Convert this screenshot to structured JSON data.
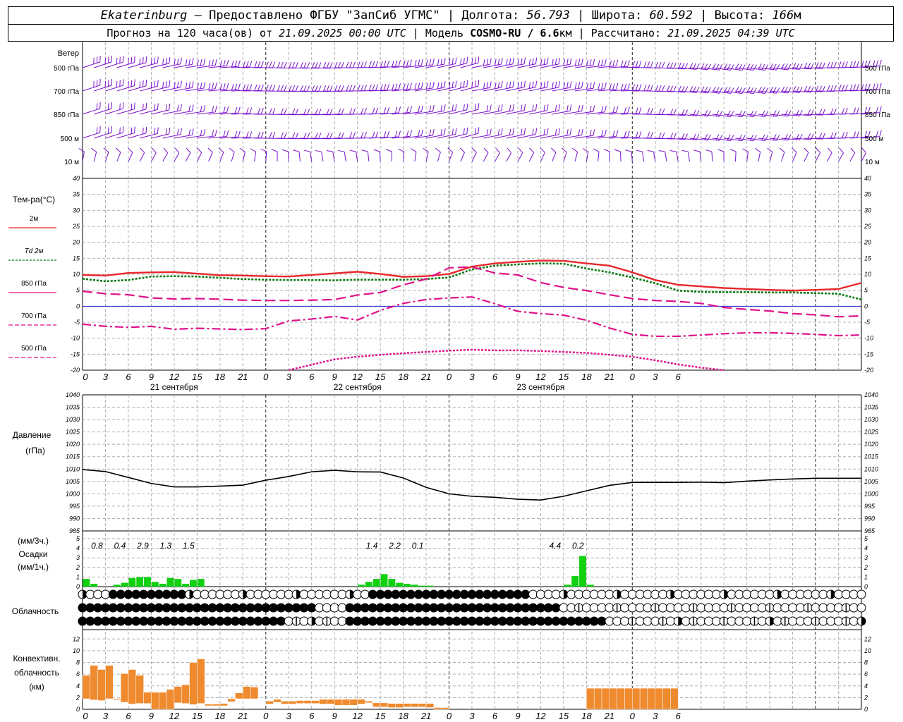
{
  "header": {
    "city": "Ekaterinburg",
    "provider": " – Предоставлено ФГБУ \"ЗапСиб УГМС\" | ",
    "lon_label": "Долгота: ",
    "lon_value": "56.793",
    "lat_label": " | Широта: ",
    "lat_value": "60.592",
    "alt_label": " | Высота: ",
    "alt_value": "166",
    "alt_unit": "м",
    "forecast_label": "Прогноз на 120 часа(ов) от ",
    "forecast_from": "21.09.2025 00:00 UTC",
    "model_label": " | Модель ",
    "model_name": "COSMO-RU / 6.6",
    "model_unit": "км",
    "calc_label": " | Рассчитано: ",
    "calc_time": "21.09.2025 04:39 UTC"
  },
  "wind_panel": {
    "title": "Ветер",
    "levels": [
      "500 гПа",
      "700 гПа",
      "850 гПа",
      "500 м",
      "10 м"
    ]
  },
  "temp_panel": {
    "title": "Тем-ра(°C)",
    "yticks": [
      "40",
      "35",
      "30",
      "25",
      "20",
      "15",
      "10",
      "5",
      "0",
      "-5",
      "-10",
      "-15",
      "-20"
    ],
    "legend": [
      "2м",
      "Td  2м",
      "850 гПа",
      "700 гПа",
      "500 гПа"
    ]
  },
  "time_axis": {
    "hour_labels": [
      "0",
      "3",
      "6",
      "9",
      "12",
      "15",
      "18",
      "21",
      "0",
      "3",
      "6",
      "9",
      "12",
      "15",
      "18",
      "21",
      "0",
      "3",
      "6",
      "9",
      "12",
      "15",
      "18",
      "21",
      "0",
      "3",
      "6"
    ],
    "day_labels": [
      "21 сентября",
      "22 сентября",
      "23 сентября"
    ]
  },
  "pressure_panel": {
    "title_line1": "Давление",
    "title_line2": "(гПа)",
    "yticks": [
      "1040",
      "1035",
      "1030",
      "1025",
      "1020",
      "1015",
      "1010",
      "1005",
      "1000",
      "995",
      "990",
      "985"
    ]
  },
  "precip_panel": {
    "title_line1": "(мм/3ч.)",
    "title_line2": "Осадки",
    "title_line3": "(мм/1ч.)",
    "yticks": [
      "5",
      "4",
      "3",
      "2",
      "1",
      "0"
    ],
    "totals_3h": [
      {
        "hour": 3,
        "label": "0.8"
      },
      {
        "hour": 6,
        "label": "0.4"
      },
      {
        "hour": 9,
        "label": "2.9"
      },
      {
        "hour": 12,
        "label": "1.3"
      },
      {
        "hour": 15,
        "label": "1.5"
      },
      {
        "hour": 39,
        "label": "1.4"
      },
      {
        "hour": 42,
        "label": "2.2"
      },
      {
        "hour": 45,
        "label": "0.1"
      },
      {
        "hour": 63,
        "label": "4.4"
      },
      {
        "hour": 66,
        "label": "0.2"
      }
    ]
  },
  "cloud_panel": {
    "title": "Облачность"
  },
  "conv_panel": {
    "title_line1": "Конвективн.",
    "title_line2": "облачность",
    "title_line3": "(км)",
    "yticks": [
      "12",
      "10",
      "8",
      "6",
      "4",
      "2",
      "0"
    ]
  },
  "colors": {
    "t2m": "#e8262a",
    "td2m": "#0b7a12",
    "t850": "#e0108a",
    "t700": "#e0108a",
    "t500": "#e0108a",
    "zero_line": "#2525d0",
    "wind": "#7a10cc",
    "precip": "#10d010",
    "convective": "#ef8a2e",
    "pressure": "#000000",
    "grid": "#aaaaaa"
  },
  "chart_data": [
    {
      "type": "line",
      "title": "Тем-ра(°C)",
      "x_unit": "hours from 21.09.2025 00:00 UTC",
      "ylim": [
        -20,
        40
      ],
      "series": [
        {
          "name": "2м",
          "x": [
            0,
            3,
            6,
            9,
            12,
            15,
            18,
            21,
            24,
            27,
            30,
            33,
            36,
            39,
            42,
            45,
            48,
            51,
            54,
            57,
            60,
            63,
            66,
            69,
            72,
            75,
            78,
            81,
            84,
            87,
            90,
            93,
            96,
            99,
            102
          ],
          "values": [
            9.8,
            9.6,
            10.4,
            10.6,
            10.7,
            10.2,
            9.7,
            9.6,
            9.4,
            9.3,
            9.8,
            10.3,
            10.8,
            10.1,
            9.2,
            9.4,
            10.1,
            12.4,
            13.4,
            13.9,
            14.3,
            14.2,
            13.4,
            12.7,
            10.6,
            8.2,
            6.7,
            6.2,
            5.7,
            5.4,
            5.1,
            4.9,
            5.1,
            5.4,
            7.3
          ]
        },
        {
          "name": "Td  2м",
          "x": [
            0,
            3,
            6,
            9,
            12,
            15,
            18,
            21,
            24,
            27,
            30,
            33,
            36,
            39,
            42,
            45,
            48,
            51,
            54,
            57,
            60,
            63,
            66,
            69,
            72,
            75,
            78,
            81,
            84,
            87,
            90,
            93,
            96,
            99,
            102
          ],
          "values": [
            8.6,
            7.8,
            8.2,
            9.3,
            9.4,
            9.3,
            8.9,
            8.5,
            8.3,
            8.2,
            8.2,
            8.1,
            8.3,
            8.3,
            8.3,
            8.5,
            9.0,
            11.5,
            12.7,
            13.1,
            13.4,
            13.3,
            11.8,
            10.6,
            9.0,
            7.2,
            4.9,
            4.5,
            4.4,
            4.4,
            4.3,
            4.3,
            4.1,
            3.9,
            2.1
          ]
        },
        {
          "name": "850 гПа",
          "x": [
            0,
            3,
            6,
            9,
            12,
            15,
            18,
            21,
            24,
            27,
            30,
            33,
            36,
            39,
            42,
            45,
            48,
            51,
            54,
            57,
            60,
            63,
            66,
            69,
            72,
            75,
            78,
            81,
            84,
            87,
            90,
            93,
            96,
            99,
            102
          ],
          "values": [
            4.7,
            3.9,
            3.6,
            2.6,
            2.3,
            2.4,
            2.2,
            1.9,
            1.8,
            1.8,
            1.9,
            2.1,
            3.5,
            4.3,
            6.7,
            8.5,
            12.0,
            12.3,
            10.4,
            9.8,
            7.4,
            5.9,
            4.9,
            3.6,
            2.4,
            1.8,
            1.5,
            0.9,
            -0.4,
            -1.0,
            -1.5,
            -2.3,
            -2.7,
            -3.3,
            -3.0
          ]
        },
        {
          "name": "700 гПа",
          "x": [
            0,
            3,
            6,
            9,
            12,
            15,
            18,
            21,
            24,
            27,
            30,
            33,
            36,
            39,
            42,
            45,
            48,
            51,
            54,
            57,
            60,
            63,
            66,
            69,
            72,
            75,
            78,
            81,
            84,
            87,
            90,
            93,
            96,
            99,
            102
          ],
          "values": [
            -5.6,
            -6.3,
            -6.6,
            -6.3,
            -7.2,
            -6.9,
            -7.1,
            -7.3,
            -7.0,
            -4.6,
            -4.0,
            -3.2,
            -4.3,
            -1.3,
            0.9,
            2.1,
            2.6,
            2.9,
            0.8,
            -1.6,
            -2.3,
            -2.8,
            -4.4,
            -6.8,
            -8.8,
            -9.4,
            -9.4,
            -9.0,
            -8.6,
            -8.3,
            -8.3,
            -8.5,
            -8.8,
            -9.2,
            -9.0
          ]
        },
        {
          "name": "500 гПа",
          "x": [
            27,
            30,
            33,
            36,
            39,
            42,
            45,
            48,
            51,
            54,
            57,
            60,
            63,
            66,
            69,
            72,
            75,
            78,
            81,
            84
          ],
          "values": [
            -20.0,
            -18.3,
            -16.6,
            -15.8,
            -15.2,
            -14.7,
            -14.3,
            -13.9,
            -13.6,
            -13.8,
            -13.8,
            -14.0,
            -14.3,
            -14.6,
            -15.2,
            -15.8,
            -16.9,
            -18.2,
            -19.2,
            -20.0
          ]
        }
      ]
    },
    {
      "type": "line",
      "title": "Давление (гПа)",
      "x_unit": "hours from 21.09.2025 00:00 UTC",
      "ylim": [
        985,
        1040
      ],
      "series": [
        {
          "name": "Давление",
          "x": [
            0,
            3,
            6,
            9,
            12,
            15,
            18,
            21,
            24,
            27,
            30,
            33,
            36,
            39,
            42,
            45,
            48,
            51,
            54,
            57,
            60,
            63,
            66,
            69,
            72,
            75,
            78,
            81,
            84,
            87,
            90,
            93,
            96,
            99,
            102
          ],
          "values": [
            1009.8,
            1009.0,
            1006.6,
            1004.2,
            1002.8,
            1002.8,
            1003.1,
            1003.5,
            1005.5,
            1007.0,
            1008.9,
            1009.5,
            1008.9,
            1008.8,
            1006.4,
            1002.6,
            1000.0,
            999.0,
            998.6,
            997.8,
            997.5,
            999.0,
            1001.2,
            1003.4,
            1004.6,
            1004.6,
            1004.6,
            1004.7,
            1004.5,
            1005.1,
            1005.6,
            1006.0,
            1006.3,
            1006.3,
            1006.3
          ]
        }
      ]
    },
    {
      "type": "bar",
      "title": "Осадки (мм/1ч.)",
      "x_unit": "hours from 21.09.2025 00:00 UTC",
      "ylim": [
        0,
        5
      ],
      "x": [
        0,
        1,
        4,
        5,
        6,
        7,
        8,
        9,
        10,
        11,
        12,
        13,
        14,
        15,
        36,
        37,
        38,
        39,
        40,
        41,
        42,
        43,
        44,
        45,
        63,
        64,
        65,
        66
      ],
      "values": [
        0.8,
        0.3,
        0.2,
        0.4,
        0.9,
        1.0,
        1.0,
        0.5,
        0.3,
        0.9,
        0.8,
        0.3,
        0.7,
        0.8,
        0.2,
        0.5,
        0.8,
        1.3,
        0.8,
        0.4,
        0.3,
        0.2,
        0.1,
        0.1,
        0.2,
        1.1,
        3.2,
        0.2
      ]
    },
    {
      "type": "bar",
      "title": "Конвективн. облачность (км)",
      "x_unit": "hours from 21.09.2025 00:00 UTC",
      "ylim": [
        0,
        13
      ],
      "x": [
        0,
        1,
        2,
        3,
        4,
        5,
        6,
        7,
        8,
        9,
        10,
        11,
        12,
        13,
        14,
        15,
        16,
        17,
        18,
        19,
        20,
        21,
        22,
        23,
        24,
        25,
        26,
        27,
        28,
        29,
        30,
        31,
        32,
        33,
        34,
        35,
        36,
        37,
        38,
        39,
        40,
        41,
        42,
        43,
        44,
        45,
        46,
        47,
        54,
        55,
        56,
        57,
        58,
        59,
        60,
        61,
        62,
        63,
        64,
        65,
        66,
        67,
        68,
        69,
        70,
        71,
        72,
        73,
        74,
        75,
        76,
        77,
        78,
        79,
        80,
        81,
        82,
        83,
        84,
        85,
        86,
        87,
        88,
        89,
        90,
        91,
        92,
        93,
        94,
        95,
        96,
        97,
        98,
        99,
        100,
        101,
        102
      ],
      "bottoms": [
        1.8,
        1.6,
        1.5,
        1.8,
        1.6,
        1.2,
        0.9,
        1.0,
        1.0,
        0.0,
        0.0,
        0.0,
        1.1,
        1.0,
        0.8,
        1.0,
        0.6,
        0.6,
        0.6,
        1.3,
        1.8,
        1.8,
        1.8,
        1.3,
        0.9,
        1.2,
        0.9,
        0.9,
        1.0,
        1.0,
        1.0,
        0.9,
        0.9,
        0.7,
        0.7,
        0.7,
        0.9,
        1.1,
        0.4,
        0.4,
        0.3,
        0.3,
        0.4,
        0.4,
        0.4,
        0.3,
        0.0,
        0.0,
        0.0,
        0.0,
        0.0,
        0.0,
        0.0,
        0.0,
        0.0,
        0.0,
        0.0,
        0.4,
        0.2,
        0.4,
        0.0,
        0.0,
        0.0,
        0.0,
        0.0,
        0.0,
        0.0,
        0.0,
        0.0,
        0.0,
        0.0,
        0.0,
        0.0,
        0.0,
        0.0,
        0.0,
        0.0,
        0.0,
        0.0,
        0.0,
        0.0,
        0.0,
        0.0,
        0.0,
        0.0,
        0.0,
        0.0,
        0.0,
        0.0,
        0.0,
        0.0,
        0.0,
        0.0,
        0.0,
        0.0,
        0.0,
        0.0
      ],
      "tops": [
        5.8,
        7.5,
        6.8,
        7.5,
        1.8,
        6.1,
        6.8,
        5.8,
        2.9,
        2.9,
        2.9,
        3.4,
        3.9,
        4.2,
        8.0,
        8.6,
        0.9,
        0.9,
        1.0,
        1.8,
        2.8,
        3.9,
        3.8,
        1.3,
        1.4,
        1.7,
        1.4,
        1.4,
        1.5,
        1.5,
        1.5,
        1.7,
        1.7,
        1.7,
        1.7,
        1.7,
        1.7,
        1.4,
        1.1,
        1.1,
        1.0,
        1.0,
        1.0,
        1.0,
        1.0,
        1.0,
        0.3,
        0.3,
        0.0,
        0.0,
        0.0,
        0.0,
        0.0,
        0.0,
        0.0,
        0.0,
        0.0,
        0.0,
        0.2,
        0.3,
        3.6,
        3.6,
        3.6,
        3.6,
        3.6,
        3.6,
        3.6,
        3.6,
        3.6,
        3.6,
        3.6,
        3.6,
        0.0,
        0.0,
        0.0,
        0.0,
        0.0,
        0.0,
        0.0,
        0.0,
        0.0,
        0.0,
        0.0,
        0.0,
        0.0,
        0.0,
        0.0,
        0.0,
        0.0,
        0.0,
        0.0,
        0.0,
        0.0,
        0.0,
        0.0,
        0.0,
        0.0
      ]
    }
  ]
}
